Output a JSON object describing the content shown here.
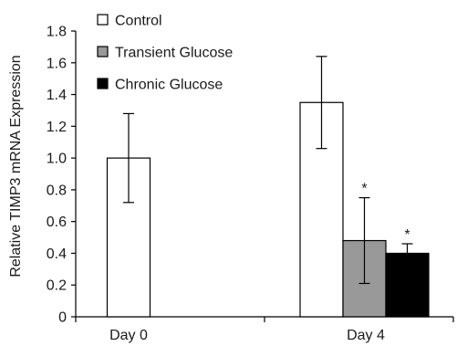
{
  "chart_data": {
    "type": "bar",
    "ylabel": "Relative TIMP3 mRNA Expression",
    "xlabel": "",
    "ylim": [
      0,
      1.8
    ],
    "yticks": [
      "0",
      "0.2",
      "0.4",
      "0.6",
      "0.8",
      "1.0",
      "1.2",
      "1.4",
      "1.6",
      "1.8"
    ],
    "categories": [
      "Day 0",
      "Day 4"
    ],
    "legend_position": "top-left",
    "series": [
      {
        "name": "Control",
        "color": "#ffffff",
        "values": [
          1.0,
          1.35
        ],
        "errors": [
          0.28,
          0.29
        ],
        "annotations": [
          "",
          ""
        ]
      },
      {
        "name": "Transient Glucose",
        "color": "#999999",
        "values": [
          null,
          0.48
        ],
        "errors": [
          null,
          0.27
        ],
        "annotations": [
          "",
          "*"
        ]
      },
      {
        "name": "Chronic Glucose",
        "color": "#000000",
        "values": [
          null,
          0.4
        ],
        "errors": [
          null,
          0.06
        ],
        "annotations": [
          "",
          "*"
        ]
      }
    ]
  }
}
